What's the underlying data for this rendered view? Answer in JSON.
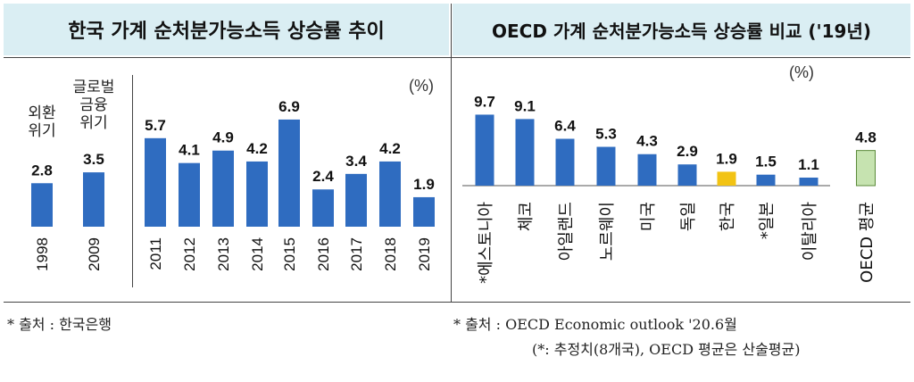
{
  "colors": {
    "bar": "#2f6cc0",
    "korea": "#f2c314",
    "oecd_avg": "#c6e3b0",
    "oecd_avg_border": "#5b8a3a",
    "header_bg": "#daeef3"
  },
  "left_title": "한국 가계 순처분가능소득 상승률 추이",
  "right_title": "OECD 가계 순처분가능소득 상승률 비교 ('19년)",
  "source_left": "* 출처 : 한국은행",
  "source_right_line1": "* 출처 : OECD Economic outlook '20.6월",
  "source_right_line2": "(*: 추정치(8개국), OECD 평균은 산술평균)",
  "chart_data": [
    {
      "type": "bar",
      "unit_label": "(%)",
      "crisis_labels": [
        [
          "외환",
          "위기"
        ],
        [
          "글로벌",
          "금융",
          "위기"
        ]
      ],
      "categories": [
        "1998",
        "2009",
        "2011",
        "2012",
        "2013",
        "2014",
        "2015",
        "2016",
        "2017",
        "2018",
        "2019"
      ],
      "values": [
        2.8,
        3.5,
        5.7,
        4.1,
        4.9,
        4.2,
        6.9,
        2.4,
        3.4,
        4.2,
        1.9
      ],
      "value_labels": [
        "2.8",
        "3.5",
        "5.7",
        "4.1",
        "4.9",
        "4.2",
        "6.9",
        "2.4",
        "3.4",
        "4.2",
        "1.9"
      ]
    },
    {
      "type": "bar",
      "unit_label": "(%)",
      "categories": [
        "*에스토니아",
        "체코",
        "아일랜드",
        "노르웨이",
        "미국",
        "독일",
        "한국",
        "*일본",
        "이탈리아",
        "OECD 평균"
      ],
      "values": [
        9.7,
        9.1,
        6.4,
        5.3,
        4.3,
        2.9,
        1.9,
        1.5,
        1.1,
        4.8
      ],
      "value_labels": [
        "9.7",
        "9.1",
        "6.4",
        "5.3",
        "4.3",
        "2.9",
        "1.9",
        "1.5",
        "1.1",
        "4.8"
      ]
    }
  ]
}
